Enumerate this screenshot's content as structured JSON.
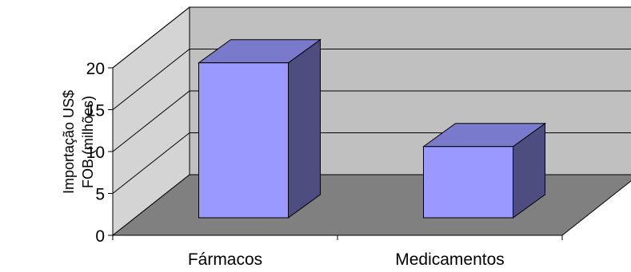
{
  "chart_data": {
    "type": "bar",
    "title": "",
    "xlabel": "",
    "ylabel": [
      "Importação US$",
      "FOB (milhões)"
    ],
    "categories": [
      "Fármacos",
      "Medicamentos"
    ],
    "series": [
      {
        "values": [
          18.5,
          8.5
        ]
      }
    ],
    "ylim": [
      0,
      20
    ],
    "yticks": [
      "0",
      "5",
      "10",
      "15",
      "20"
    ],
    "grid": true,
    "three_d": true,
    "colors": {
      "bar_front": "#9999ff",
      "bar_top": "#7a7acc",
      "bar_side": "#4d4d80",
      "back_wall": "#c0c0c0",
      "side_wall": "#d4d4d4",
      "floor": "#808080",
      "grid": "#000000",
      "text": "#000000"
    }
  }
}
